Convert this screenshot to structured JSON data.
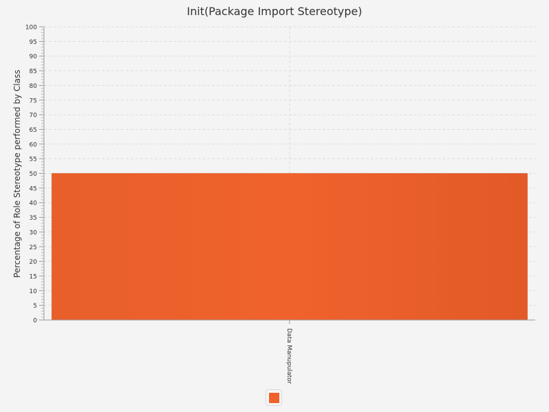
{
  "chart_data": {
    "type": "bar",
    "title": "Init(Package Import Stereotype)",
    "xlabel": "",
    "ylabel": "Percentage of Role Stereotype performed by Class",
    "categories": [
      "Data Manupulator"
    ],
    "series": [
      {
        "values": [
          50
        ],
        "color": "#f0622c"
      }
    ],
    "ylim": [
      0,
      100
    ],
    "ytick_step": 5,
    "grid": true,
    "legend_placement": "bottom"
  }
}
